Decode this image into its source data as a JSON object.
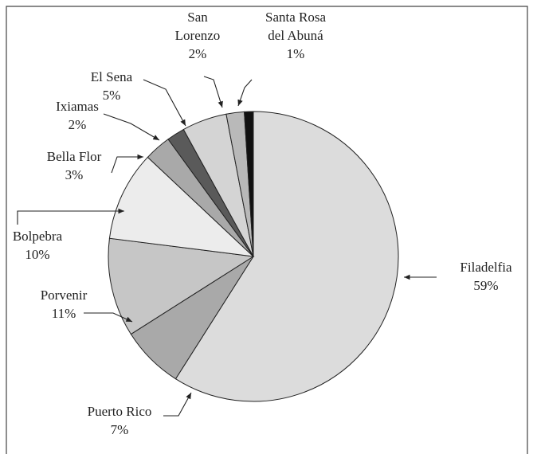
{
  "chart_data": {
    "type": "pie",
    "categories": [
      "Filadelfia",
      "Puerto Rico",
      "Porvenir",
      "Bolpebra",
      "Bella Flor",
      "Ixiamas",
      "El Sena",
      "San Lorenzo",
      "Santa Rosa del Abuná"
    ],
    "values": [
      59,
      7,
      11,
      10,
      3,
      2,
      5,
      2,
      1
    ],
    "value_labels": [
      "59%",
      "7%",
      "11%",
      "10%",
      "3%",
      "2%",
      "5%",
      "2%",
      "1%"
    ],
    "colors": [
      "#dcdcdc",
      "#a9a9a9",
      "#c6c6c6",
      "#ececec",
      "#a9a9a9",
      "#5a5a5a",
      "#d4d4d4",
      "#b9b9b9",
      "#111111"
    ]
  }
}
